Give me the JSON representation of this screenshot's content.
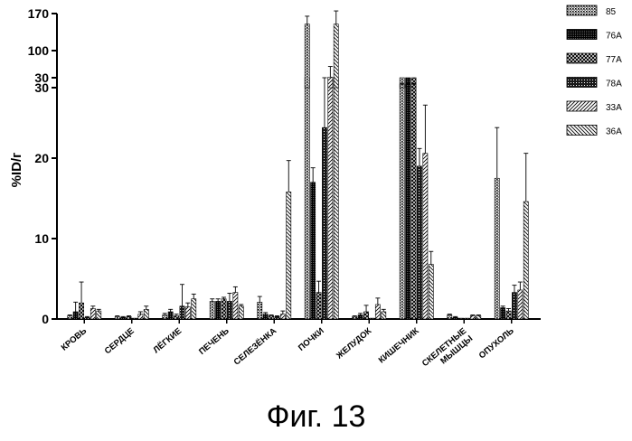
{
  "chart_data": {
    "type": "bar",
    "title": "",
    "xlabel": "",
    "ylabel": "%ID/г",
    "broken_axis": true,
    "ylim_lower": [
      0,
      30
    ],
    "lower_ticks": [
      "0",
      "10",
      "20",
      "30"
    ],
    "ylim_upper": [
      30,
      170
    ],
    "upper_ticks": [
      "30",
      "100",
      "170"
    ],
    "legend_placement": "top-right",
    "categories": [
      "КРОВЬ",
      "СЕРДЦЕ",
      "ЛЁГКИЕ",
      "ПЕЧЕНЬ",
      "СЕЛЕЗЁНКА",
      "ПОЧКИ",
      "ЖЕЛУДОК",
      "КИШЕЧНИК",
      "СКЕЛЕТНЫЕ МЫШЦЫ",
      "ОПУХОЛЬ"
    ],
    "series": [
      {
        "name": "85",
        "values": [
          0.4,
          0.3,
          0.5,
          2.2,
          2.1,
          150,
          0.3,
          36,
          0.5,
          17.5
        ],
        "errors": [
          0.1,
          0.1,
          0.2,
          0.3,
          0.7,
          15,
          0.1,
          2,
          0.1,
          6.3
        ]
      },
      {
        "name": "76A",
        "values": [
          0.9,
          0.2,
          0.9,
          2.2,
          0.6,
          17.0,
          0.5,
          36,
          0.2,
          1.4
        ],
        "errors": [
          1.2,
          0.1,
          0.3,
          0.3,
          0.2,
          1.8,
          0.2,
          2,
          0.1,
          0.2
        ]
      },
      {
        "name": "77A",
        "values": [
          2.0,
          0.3,
          0.4,
          2.5,
          0.4,
          3.3,
          0.9,
          36,
          0.1,
          1.0
        ],
        "errors": [
          2.6,
          0.1,
          0.2,
          0.2,
          0.1,
          1.4,
          0.8,
          2,
          0.05,
          0.3
        ]
      },
      {
        "name": "78A",
        "values": [
          0.2,
          0.1,
          1.6,
          2.2,
          0.3,
          23.8,
          0.1,
          19.0,
          0.1,
          3.3
        ],
        "errors": [
          0.1,
          0.05,
          2.7,
          1.0,
          0.1,
          6.2,
          0.05,
          2.2,
          0.05,
          0.9
        ]
      },
      {
        "name": "33A",
        "values": [
          1.3,
          0.6,
          1.5,
          3.3,
          0.6,
          50,
          1.8,
          20.6,
          0.4,
          3.6
        ],
        "errors": [
          0.3,
          0.3,
          0.5,
          0.7,
          0.4,
          20,
          0.8,
          6,
          0.1,
          1.0
        ]
      },
      {
        "name": "36A",
        "values": [
          1.0,
          1.2,
          2.5,
          1.6,
          15.8,
          150,
          0.9,
          6.8,
          0.4,
          14.6
        ],
        "errors": [
          0.2,
          0.4,
          0.6,
          0.2,
          3.9,
          25,
          0.3,
          1.6,
          0.1,
          6.0
        ]
      }
    ],
    "series_patterns": [
      "dots",
      "dense",
      "crosshatch",
      "grid",
      "diag-right",
      "diag-left"
    ]
  },
  "caption": "Фиг. 13"
}
